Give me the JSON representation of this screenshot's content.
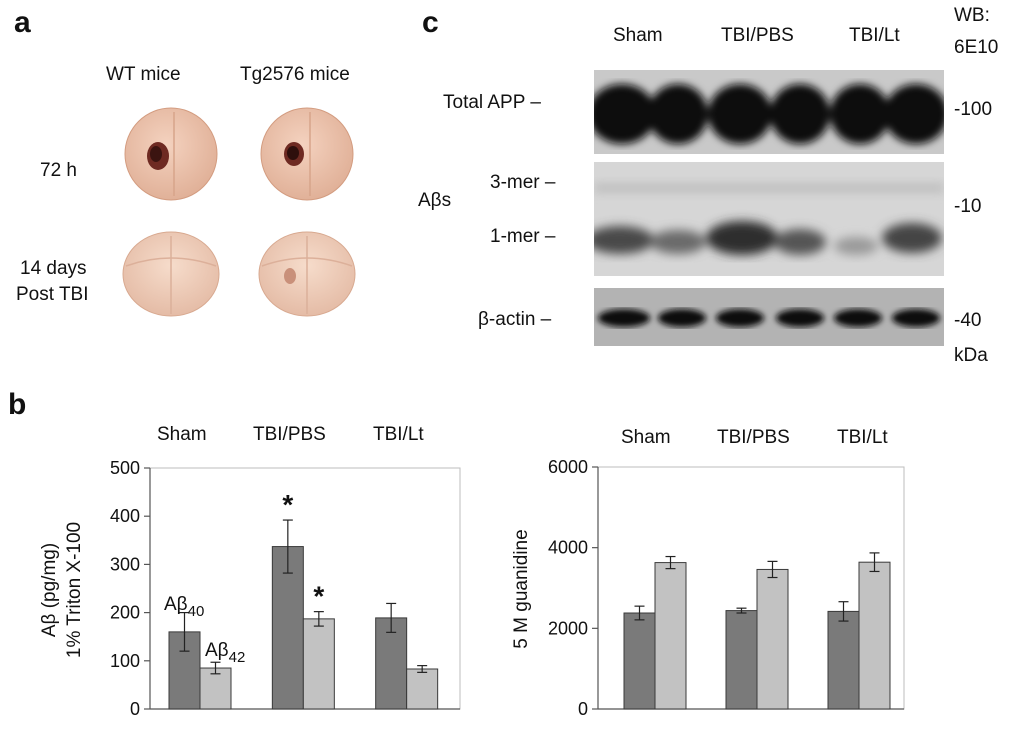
{
  "panel_a": {
    "label": "a",
    "col_labels": [
      "WT mice",
      "Tg2576 mice"
    ],
    "row_labels": [
      "72 h",
      "14 days",
      "Post TBI"
    ]
  },
  "panel_b": {
    "label": "b"
  },
  "panel_c": {
    "label": "c",
    "lane_groups": [
      "Sham",
      "TBI/PBS",
      "TBI/Lt"
    ],
    "wb_label": [
      "WB:",
      "6E10"
    ],
    "band_labels": {
      "total_app": "Total APP –",
      "abetas": "Aβs",
      "trimer": "3-mer –",
      "monomer": "1-mer –",
      "actin": "β-actin –"
    },
    "mw_markers": [
      "-100",
      "-10",
      "-40"
    ],
    "mw_unit": "kDa"
  },
  "colors": {
    "bar_dark": "#7a7a7a",
    "bar_light": "#c2c2c2"
  },
  "chart_data": [
    {
      "type": "bar",
      "title": "",
      "ylabel_lines": [
        "Aβ (pg/mg)",
        "1% Triton X-100"
      ],
      "categories": [
        "Sham",
        "TBI/PBS",
        "TBI/Lt"
      ],
      "ylim": [
        0,
        500
      ],
      "yticks": [
        "0",
        "100",
        "200",
        "300",
        "400",
        "500"
      ],
      "series": [
        {
          "name": "Aβ40",
          "label_main": "Aβ",
          "label_sub": "40",
          "values": [
            160,
            337,
            189
          ],
          "errors": [
            40,
            55,
            30
          ]
        },
        {
          "name": "Aβ42",
          "label_main": "Aβ",
          "label_sub": "42",
          "values": [
            85,
            187,
            83
          ],
          "errors": [
            12,
            15,
            7
          ]
        }
      ],
      "annotations": [
        {
          "text": "*",
          "category": "TBI/PBS",
          "series": "Aβ40"
        },
        {
          "text": "*",
          "category": "TBI/PBS",
          "series": "Aβ42"
        }
      ]
    },
    {
      "type": "bar",
      "title": "",
      "ylabel_lines": [
        "5 M guanidine"
      ],
      "categories": [
        "Sham",
        "TBI/PBS",
        "TBI/Lt"
      ],
      "ylim": [
        0,
        6000
      ],
      "yticks": [
        "0",
        "2000",
        "4000",
        "6000"
      ],
      "series": [
        {
          "name": "dark",
          "values": [
            2380,
            2440,
            2420
          ],
          "errors": [
            170,
            60,
            240
          ]
        },
        {
          "name": "light",
          "values": [
            3630,
            3460,
            3640
          ],
          "errors": [
            150,
            200,
            230
          ]
        }
      ]
    }
  ]
}
